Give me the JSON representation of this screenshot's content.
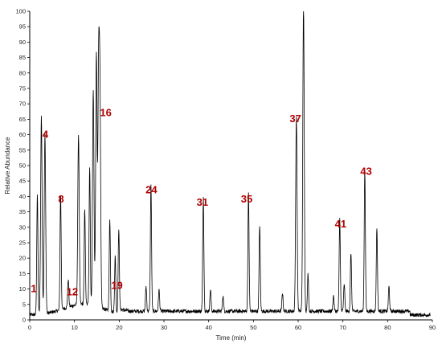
{
  "chart_data": {
    "type": "line",
    "title": "",
    "xlabel": "Time (min)",
    "ylabel": "Relative Abundance",
    "xlim": [
      0,
      90
    ],
    "ylim": [
      0,
      100
    ],
    "x_ticks": [
      "0",
      "10",
      "20",
      "30",
      "40",
      "50",
      "60",
      "70",
      "80",
      "90"
    ],
    "y_ticks": [
      "0",
      "5",
      "10",
      "15",
      "20",
      "25",
      "30",
      "35",
      "40",
      "45",
      "50",
      "55",
      "60",
      "65",
      "70",
      "75",
      "80",
      "85",
      "90",
      "95",
      "100"
    ],
    "grid": false,
    "line_color": "#000000",
    "label_color": "#b00000",
    "peaks": [
      {
        "x": 1.7,
        "y": 39
      },
      {
        "x": 2.6,
        "y": 64
      },
      {
        "x": 3.4,
        "y": 58
      },
      {
        "x": 6.9,
        "y": 37
      },
      {
        "x": 8.6,
        "y": 9
      },
      {
        "x": 10.9,
        "y": 55
      },
      {
        "x": 12.3,
        "y": 31
      },
      {
        "x": 13.4,
        "y": 45
      },
      {
        "x": 14.2,
        "y": 70
      },
      {
        "x": 14.9,
        "y": 82
      },
      {
        "x": 15.4,
        "y": 75
      },
      {
        "x": 15.7,
        "y": 65
      },
      {
        "x": 17.9,
        "y": 30
      },
      {
        "x": 19.1,
        "y": 18
      },
      {
        "x": 19.9,
        "y": 27
      },
      {
        "x": 26.0,
        "y": 8
      },
      {
        "x": 27.1,
        "y": 41
      },
      {
        "x": 28.9,
        "y": 7
      },
      {
        "x": 38.8,
        "y": 37
      },
      {
        "x": 40.4,
        "y": 7
      },
      {
        "x": 43.2,
        "y": 5
      },
      {
        "x": 48.9,
        "y": 38
      },
      {
        "x": 51.4,
        "y": 28
      },
      {
        "x": 56.5,
        "y": 6
      },
      {
        "x": 59.6,
        "y": 63
      },
      {
        "x": 61.2,
        "y": 100
      },
      {
        "x": 62.2,
        "y": 12
      },
      {
        "x": 67.9,
        "y": 5
      },
      {
        "x": 69.3,
        "y": 30
      },
      {
        "x": 70.3,
        "y": 9
      },
      {
        "x": 71.8,
        "y": 19
      },
      {
        "x": 74.9,
        "y": 46
      },
      {
        "x": 77.6,
        "y": 27
      },
      {
        "x": 80.3,
        "y": 8
      }
    ],
    "annotations": [
      {
        "label": "1",
        "x": 0.9,
        "y": 9
      },
      {
        "label": "4",
        "x": 3.5,
        "y": 59
      },
      {
        "label": "8",
        "x": 7.0,
        "y": 38
      },
      {
        "label": "12",
        "x": 9.5,
        "y": 8
      },
      {
        "label": "16",
        "x": 17.0,
        "y": 66
      },
      {
        "label": "19",
        "x": 19.5,
        "y": 10
      },
      {
        "label": "24",
        "x": 27.2,
        "y": 41
      },
      {
        "label": "31",
        "x": 38.6,
        "y": 37
      },
      {
        "label": "35",
        "x": 48.5,
        "y": 38
      },
      {
        "label": "37",
        "x": 59.4,
        "y": 64
      },
      {
        "label": "41",
        "x": 69.5,
        "y": 30
      },
      {
        "label": "43",
        "x": 75.2,
        "y": 47
      }
    ]
  }
}
